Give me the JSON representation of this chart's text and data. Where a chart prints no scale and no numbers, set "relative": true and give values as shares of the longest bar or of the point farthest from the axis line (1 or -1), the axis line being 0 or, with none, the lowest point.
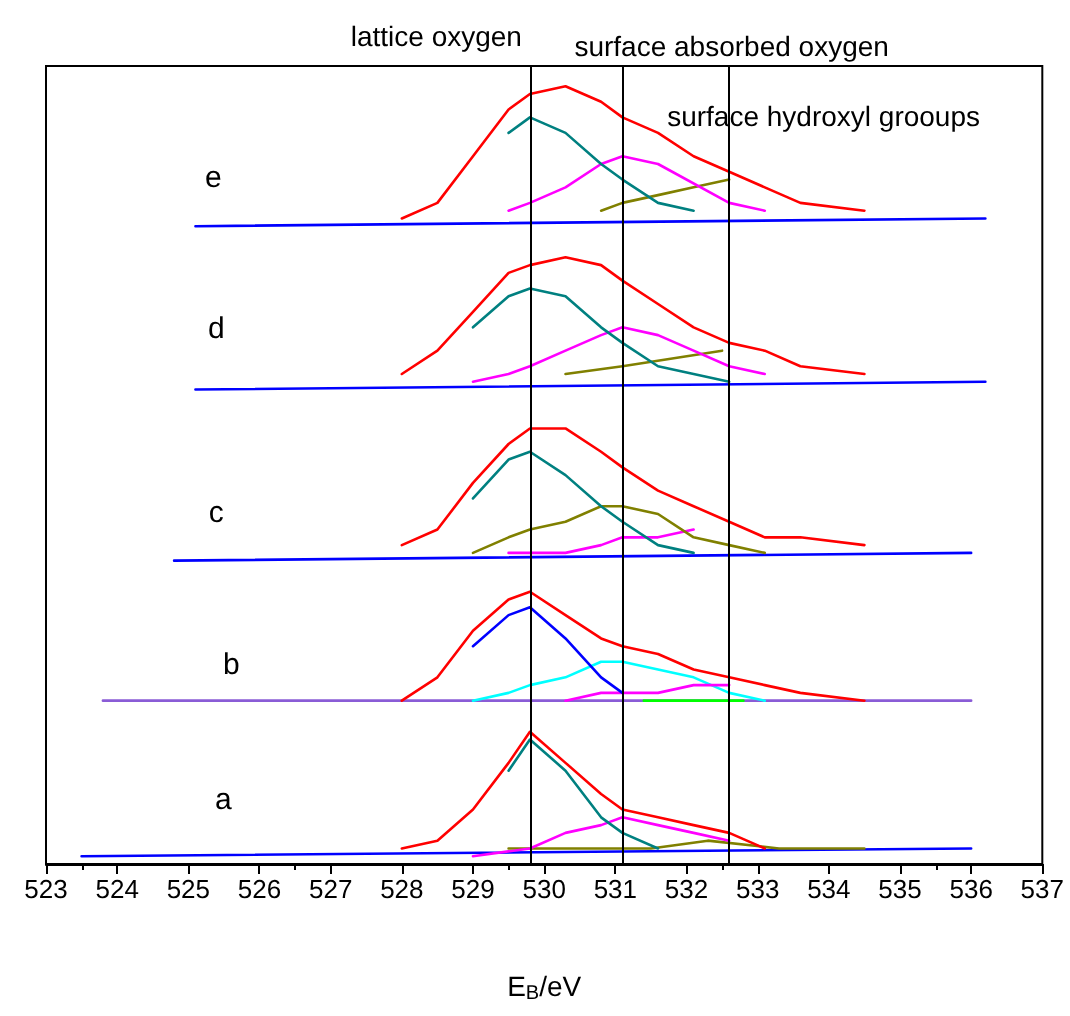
{
  "chart_data": {
    "type": "line",
    "relative": true,
    "xlabel": "E$_{B}$/eV",
    "xlim": [
      523,
      537
    ],
    "xticks": [
      523,
      524,
      525,
      526,
      527,
      528,
      529,
      530,
      531,
      532,
      533,
      534,
      535,
      536,
      537
    ],
    "marker": "none",
    "line_style": "solid",
    "ref_lines": [
      {
        "axis": "x",
        "value": 529.8,
        "label": "lattice oxygen",
        "color": "#000000"
      },
      {
        "axis": "x",
        "value": 531.1,
        "label": "surface absorbed oxygen",
        "color": "#000000"
      },
      {
        "axis": "x",
        "value": 532.6,
        "label": "surface hydroxyl grooups",
        "color": "#000000"
      }
    ],
    "annotations": [
      "a",
      "b",
      "c",
      "d",
      "e"
    ],
    "series": [
      {
        "color": "#0000ff",
        "x": [
          523.5,
          536.0
        ],
        "values": [
          0.01,
          0.02
        ]
      },
      {
        "color": "#808000",
        "x": [
          529.5,
          530.5,
          531.5,
          532.3,
          533.3,
          534.5
        ],
        "values": [
          0.02,
          0.02,
          0.02,
          0.03,
          0.02,
          0.02
        ]
      },
      {
        "color": "#ff00ff",
        "x": [
          529,
          529.8,
          530.3,
          530.8,
          531.1,
          531.6,
          532.1,
          532.6
        ],
        "values": [
          0.01,
          0.02,
          0.04,
          0.05,
          0.06,
          0.05,
          0.04,
          0.03
        ]
      },
      {
        "color": "#008080",
        "x": [
          529.5,
          529.8,
          530.3,
          530.8,
          531.1,
          531.6
        ],
        "values": [
          0.12,
          0.16,
          0.12,
          0.06,
          0.04,
          0.02
        ]
      },
      {
        "color": "#ff0000",
        "x": [
          528,
          528.5,
          529,
          529.5,
          529.8,
          530.3,
          530.8,
          531.1,
          531.6,
          532.1,
          532.6,
          533.1
        ],
        "values": [
          0.02,
          0.03,
          0.07,
          0.13,
          0.17,
          0.13,
          0.09,
          0.07,
          0.06,
          0.05,
          0.04,
          0.02
        ]
      },
      {
        "color": "#8a5cd6",
        "x": [
          523.8,
          536.0
        ],
        "values": [
          0.21,
          0.21
        ]
      },
      {
        "color": "#00ff00",
        "x": [
          531.4,
          532.8
        ],
        "values": [
          0.21,
          0.21
        ]
      },
      {
        "color": "#00ffff",
        "x": [
          529,
          529.5,
          529.8,
          530.3,
          530.8,
          531.1,
          531.6,
          532.1,
          532.6,
          533.1
        ],
        "values": [
          0.21,
          0.22,
          0.23,
          0.24,
          0.26,
          0.26,
          0.25,
          0.24,
          0.22,
          0.21
        ]
      },
      {
        "color": "#ff00ff",
        "x": [
          530.3,
          530.8,
          531.1,
          531.6,
          532.1,
          532.6
        ],
        "values": [
          0.21,
          0.22,
          0.22,
          0.22,
          0.23,
          0.23
        ]
      },
      {
        "color": "#0000ff",
        "x": [
          529,
          529.5,
          529.8,
          530.3,
          530.8,
          531.1
        ],
        "values": [
          0.28,
          0.32,
          0.33,
          0.29,
          0.24,
          0.22
        ]
      },
      {
        "color": "#ff0000",
        "x": [
          528,
          528.5,
          529,
          529.5,
          529.8,
          530.3,
          530.8,
          531.1,
          531.6,
          532.1,
          532.6,
          533.1,
          533.6,
          534.5
        ],
        "values": [
          0.21,
          0.24,
          0.3,
          0.34,
          0.35,
          0.32,
          0.29,
          0.28,
          0.27,
          0.25,
          0.24,
          0.23,
          0.22,
          0.21
        ]
      },
      {
        "color": "#0000ff",
        "x": [
          524.8,
          536.0
        ],
        "values": [
          0.39,
          0.4
        ]
      },
      {
        "color": "#ff00ff",
        "x": [
          529.5,
          529.8,
          530.3,
          530.8,
          531.1,
          531.6,
          532.1
        ],
        "values": [
          0.4,
          0.4,
          0.4,
          0.41,
          0.42,
          0.42,
          0.43
        ]
      },
      {
        "color": "#808000",
        "x": [
          529,
          529.5,
          529.8,
          530.3,
          530.8,
          531.1,
          531.6,
          532.1,
          532.6,
          533.1
        ],
        "values": [
          0.4,
          0.42,
          0.43,
          0.44,
          0.46,
          0.46,
          0.45,
          0.42,
          0.41,
          0.4
        ]
      },
      {
        "color": "#008080",
        "x": [
          529,
          529.5,
          529.8,
          530.3,
          530.8,
          531.1,
          531.6,
          532.1
        ],
        "values": [
          0.47,
          0.52,
          0.53,
          0.5,
          0.46,
          0.44,
          0.41,
          0.4
        ]
      },
      {
        "color": "#ff0000",
        "x": [
          528,
          528.5,
          529,
          529.5,
          529.8,
          530.3,
          530.8,
          531.1,
          531.6,
          532.1,
          532.6,
          533.1,
          533.6,
          534.5
        ],
        "values": [
          0.41,
          0.43,
          0.49,
          0.54,
          0.56,
          0.56,
          0.53,
          0.51,
          0.48,
          0.46,
          0.44,
          0.42,
          0.42,
          0.41
        ]
      },
      {
        "color": "#0000ff",
        "x": [
          525.1,
          536.2
        ],
        "values": [
          0.61,
          0.62
        ]
      },
      {
        "color": "#808000",
        "x": [
          530.3,
          531.1,
          532.5
        ],
        "values": [
          0.63,
          0.64,
          0.66
        ]
      },
      {
        "color": "#ff00ff",
        "x": [
          529,
          529.5,
          529.8,
          530.3,
          530.8,
          531.1,
          531.6,
          532.1,
          532.6,
          533.1
        ],
        "values": [
          0.62,
          0.63,
          0.64,
          0.66,
          0.68,
          0.69,
          0.68,
          0.66,
          0.64,
          0.63
        ]
      },
      {
        "color": "#008080",
        "x": [
          529,
          529.5,
          529.8,
          530.3,
          530.8,
          531.1,
          531.6,
          532.1,
          532.6
        ],
        "values": [
          0.69,
          0.73,
          0.74,
          0.73,
          0.69,
          0.67,
          0.64,
          0.63,
          0.62
        ]
      },
      {
        "color": "#ff0000",
        "x": [
          528,
          528.5,
          529,
          529.5,
          529.8,
          530.3,
          530.8,
          531.1,
          531.6,
          532.1,
          532.6,
          533.1,
          533.6,
          534.5
        ],
        "values": [
          0.63,
          0.66,
          0.71,
          0.76,
          0.77,
          0.78,
          0.77,
          0.75,
          0.72,
          0.69,
          0.67,
          0.66,
          0.64,
          0.63
        ]
      },
      {
        "color": "#0000ff",
        "x": [
          525.1,
          536.2
        ],
        "values": [
          0.82,
          0.83
        ]
      },
      {
        "color": "#808000",
        "x": [
          530.8,
          531.1,
          531.6,
          532.1,
          532.6
        ],
        "values": [
          0.84,
          0.85,
          0.86,
          0.87,
          0.88
        ]
      },
      {
        "color": "#ff00ff",
        "x": [
          529.5,
          529.8,
          530.3,
          530.8,
          531.1,
          531.6,
          532.6,
          533.1
        ],
        "values": [
          0.84,
          0.85,
          0.87,
          0.9,
          0.91,
          0.9,
          0.85,
          0.84
        ]
      },
      {
        "color": "#008080",
        "x": [
          529.5,
          529.8,
          530.3,
          530.8,
          531.1,
          531.6,
          532.1
        ],
        "values": [
          0.94,
          0.96,
          0.94,
          0.9,
          0.88,
          0.85,
          0.84
        ]
      },
      {
        "color": "#ff0000",
        "x": [
          528,
          528.5,
          529,
          529.5,
          529.8,
          530.3,
          530.8,
          531.1,
          531.6,
          532.1,
          532.6,
          533.1,
          533.6,
          534.5
        ],
        "values": [
          0.83,
          0.85,
          0.91,
          0.97,
          0.99,
          1.0,
          0.98,
          0.96,
          0.94,
          0.91,
          0.89,
          0.87,
          0.85,
          0.84
        ]
      }
    ]
  }
}
